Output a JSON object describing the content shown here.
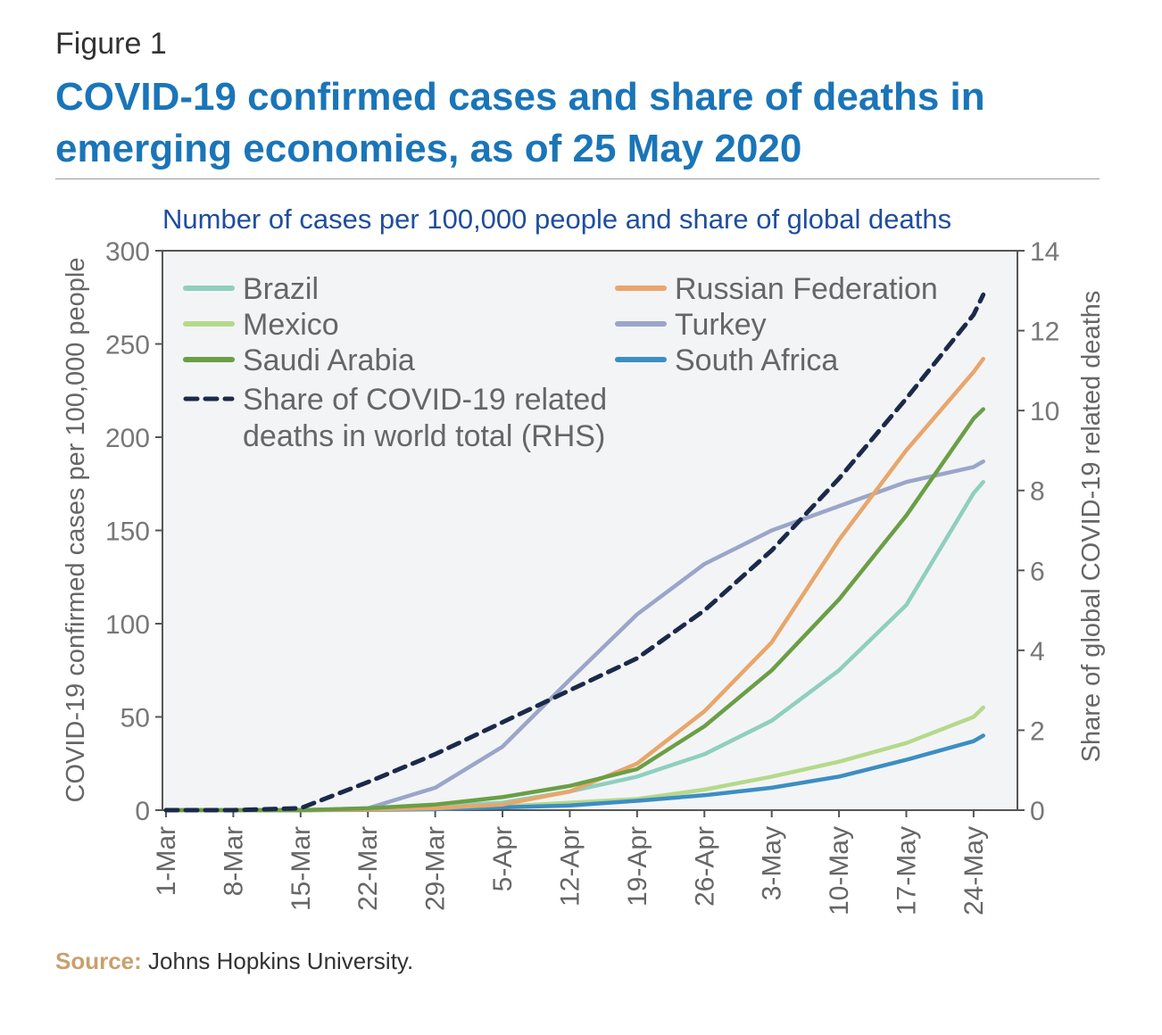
{
  "figure_label": "Figure 1",
  "title": "COVID-19 confirmed cases and share of deaths in emerging economies, as of 25 May 2020",
  "source_label": "Source:",
  "source_text": " Johns Hopkins University.",
  "chart_data": {
    "type": "line",
    "title": "Number of cases per 100,000 people and share of global deaths",
    "ylabel": "COVID-19 confirmed cases per 100,000 people",
    "y2label": "Share of global COVID-19 related deaths",
    "ylim": [
      0,
      300
    ],
    "y2lim": [
      0,
      14
    ],
    "yticks": [
      0,
      50,
      100,
      150,
      200,
      250,
      300
    ],
    "y2ticks": [
      0,
      2,
      4,
      6,
      8,
      10,
      12,
      14
    ],
    "xticks": [
      "1-Mar",
      "8-Mar",
      "15-Mar",
      "22-Mar",
      "29-Mar",
      "5-Apr",
      "12-Apr",
      "19-Apr",
      "26-Apr",
      "3-May",
      "10-May",
      "17-May",
      "24-May"
    ],
    "x_unit": "day of year (1-Mar = day 0, 25-May = day 85)",
    "x": [
      0,
      7,
      14,
      21,
      28,
      35,
      42,
      49,
      56,
      63,
      70,
      77,
      84,
      85
    ],
    "legend_position": "top-left",
    "grid": false,
    "series": [
      {
        "name": "Brazil",
        "color": "#8fcfbf",
        "dashed": false,
        "axis": "left",
        "values": [
          0,
          0,
          0,
          0.5,
          2,
          4,
          10,
          18,
          30,
          48,
          75,
          110,
          170,
          176
        ]
      },
      {
        "name": "Mexico",
        "color": "#b5d98a",
        "dashed": false,
        "axis": "left",
        "values": [
          0,
          0,
          0,
          0.3,
          1,
          2,
          4,
          6,
          11,
          18,
          26,
          36,
          50,
          55
        ]
      },
      {
        "name": "Saudi Arabia",
        "color": "#6a9f45",
        "dashed": false,
        "axis": "left",
        "values": [
          0,
          0,
          0,
          1,
          3,
          7,
          13,
          22,
          45,
          75,
          113,
          158,
          210,
          215
        ]
      },
      {
        "name": "Share of COVID-19 related deaths in world total (RHS)",
        "color": "#1b2a4a",
        "dashed": true,
        "axis": "right",
        "values": [
          0,
          0,
          0.05,
          0.7,
          1.4,
          2.2,
          3.0,
          3.8,
          5.0,
          6.5,
          8.3,
          10.3,
          12.4,
          12.9
        ]
      },
      {
        "name": "Russian Federation",
        "color": "#e8a66a",
        "dashed": false,
        "axis": "left",
        "values": [
          0,
          0,
          0,
          0.3,
          1,
          3,
          10,
          25,
          53,
          90,
          145,
          193,
          235,
          242
        ]
      },
      {
        "name": "Turkey",
        "color": "#9aa5c9",
        "dashed": false,
        "axis": "left",
        "values": [
          0,
          0,
          0,
          1,
          12,
          34,
          70,
          105,
          132,
          150,
          163,
          176,
          184,
          187
        ]
      },
      {
        "name": "South Africa",
        "color": "#3b8ec4",
        "dashed": false,
        "axis": "left",
        "values": [
          0,
          0,
          0,
          0.1,
          0.5,
          1.5,
          2.5,
          5,
          8,
          12,
          18,
          27,
          37,
          40
        ]
      }
    ]
  }
}
